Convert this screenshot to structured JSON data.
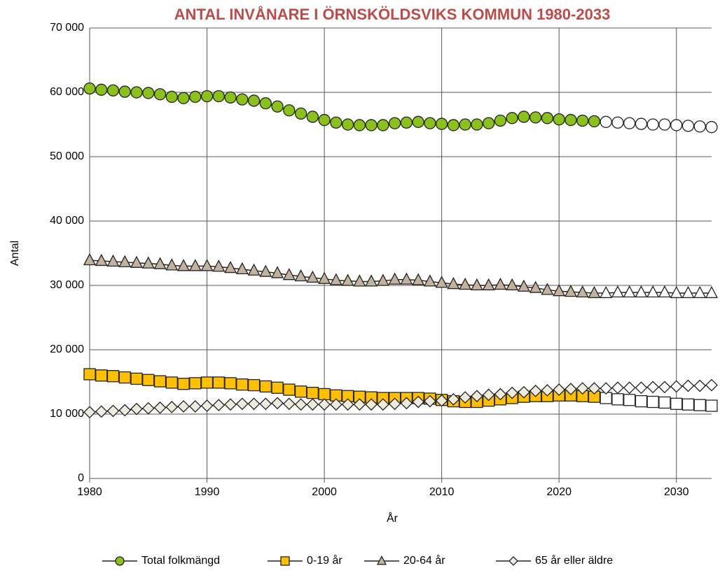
{
  "chart_data": {
    "type": "line",
    "title": "ANTAL INVÅNARE I ÖRNSKÖLDSVIKS KOMMUN 1980-2033",
    "x_label": "År",
    "y_label": "Antal",
    "x": [
      1980,
      1981,
      1982,
      1983,
      1984,
      1985,
      1986,
      1987,
      1988,
      1989,
      1990,
      1991,
      1992,
      1993,
      1994,
      1995,
      1996,
      1997,
      1998,
      1999,
      2000,
      2001,
      2002,
      2003,
      2004,
      2005,
      2006,
      2007,
      2008,
      2009,
      2010,
      2011,
      2012,
      2013,
      2014,
      2015,
      2016,
      2017,
      2018,
      2019,
      2020,
      2021,
      2022,
      2023,
      2024,
      2025,
      2026,
      2027,
      2028,
      2029,
      2030,
      2031,
      2032,
      2033
    ],
    "hollow_from": 2024,
    "series": [
      {
        "name": "Total folkmängd",
        "color": "#8ac21b",
        "marker": "circle",
        "values": [
          60600,
          60400,
          60300,
          60100,
          60000,
          59900,
          59700,
          59300,
          59100,
          59300,
          59400,
          59400,
          59200,
          58900,
          58700,
          58300,
          57800,
          57200,
          56700,
          56200,
          55700,
          55300,
          55000,
          54900,
          54900,
          54900,
          55200,
          55300,
          55400,
          55200,
          55100,
          54900,
          55000,
          55000,
          55200,
          55600,
          56000,
          56200,
          56100,
          56000,
          55800,
          55700,
          55600,
          55500,
          55400,
          55300,
          55200,
          55100,
          55000,
          55000,
          54900,
          54800,
          54700,
          54600
        ]
      },
      {
        "name": "0-19 år",
        "color": "#ffc000",
        "marker": "square",
        "values": [
          16200,
          16000,
          15900,
          15700,
          15500,
          15300,
          15100,
          14900,
          14700,
          14800,
          14900,
          14900,
          14800,
          14600,
          14500,
          14300,
          14100,
          13800,
          13500,
          13300,
          13100,
          12900,
          12800,
          12700,
          12600,
          12500,
          12500,
          12500,
          12500,
          12400,
          12200,
          12000,
          11900,
          11900,
          12100,
          12300,
          12500,
          12700,
          12800,
          12800,
          12900,
          12900,
          12800,
          12700,
          12500,
          12300,
          12200,
          12000,
          11900,
          11800,
          11600,
          11500,
          11400,
          11300
        ]
      },
      {
        "name": "20-64 år",
        "color": "#c4b39c",
        "marker": "triangle",
        "values": [
          33900,
          33800,
          33700,
          33600,
          33500,
          33400,
          33300,
          33100,
          33000,
          33000,
          33000,
          32900,
          32700,
          32500,
          32300,
          32100,
          31900,
          31600,
          31400,
          31200,
          31000,
          30800,
          30700,
          30600,
          30600,
          30700,
          30900,
          30900,
          30800,
          30600,
          30400,
          30200,
          30100,
          30000,
          30000,
          30100,
          30000,
          29800,
          29600,
          29300,
          29100,
          29000,
          28900,
          28800,
          28800,
          28900,
          28900,
          28900,
          28900,
          28900,
          28800,
          28800,
          28800,
          28800
        ]
      },
      {
        "name": "65 år eller äldre",
        "color": "#eeeadc",
        "marker": "diamond",
        "values": [
          10300,
          10400,
          10500,
          10600,
          10800,
          10900,
          11000,
          11100,
          11200,
          11200,
          11300,
          11400,
          11500,
          11600,
          11600,
          11600,
          11700,
          11600,
          11500,
          11500,
          11500,
          11500,
          11500,
          11500,
          11500,
          11500,
          11600,
          11700,
          11900,
          12000,
          12100,
          12300,
          12600,
          12800,
          13000,
          13100,
          13300,
          13400,
          13600,
          13700,
          13800,
          13900,
          14000,
          14000,
          14000,
          14100,
          14100,
          14100,
          14200,
          14200,
          14300,
          14400,
          14400,
          14500
        ]
      }
    ],
    "xlim": [
      1980,
      2033
    ],
    "xticks": [
      1980,
      1990,
      2000,
      2010,
      2020,
      2030
    ],
    "ylim": [
      0,
      70000
    ],
    "yticks": [
      0,
      {
        "value": 10000,
        "label": "10 000"
      },
      {
        "value": 20000,
        "label": "20 000"
      },
      {
        "value": 30000,
        "label": "30 000"
      },
      {
        "value": 40000,
        "label": "40 000"
      },
      {
        "value": 50000,
        "label": "50 000"
      },
      {
        "value": 60000,
        "label": "60 000"
      },
      {
        "value": 70000,
        "label": "70 000"
      }
    ],
    "grid": true,
    "legend": "bottom"
  }
}
